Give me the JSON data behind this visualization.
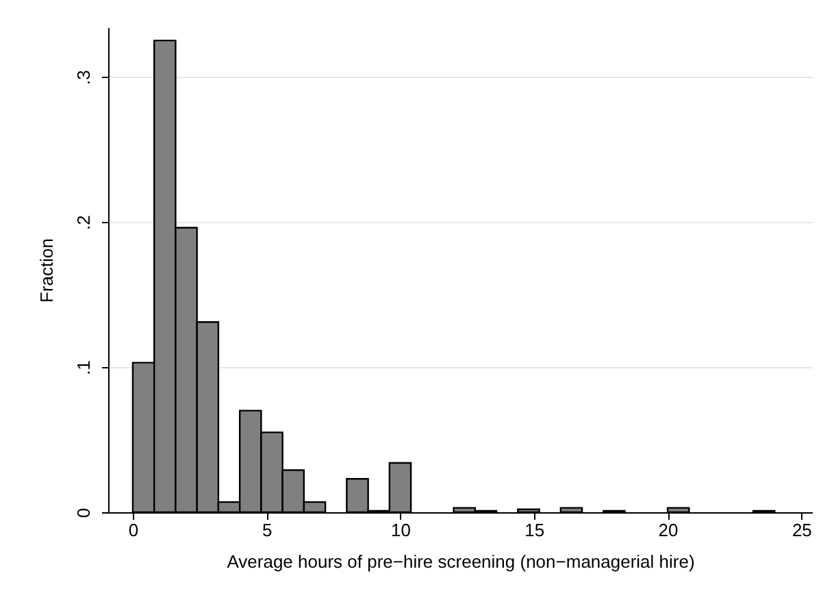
{
  "chart_data": {
    "type": "histogram",
    "xlabel": "Average hours of pre−hire screening (non−managerial hire)",
    "ylabel": "Fraction",
    "bins": [
      0,
      0.8,
      1.6,
      2.4,
      3.2,
      4,
      4.8,
      5.6,
      6.4,
      7.2,
      8,
      8.8,
      9.6,
      10.4,
      11.2,
      12,
      12.8,
      13.6,
      14.4,
      15.2,
      16,
      16.8,
      17.6,
      18.4,
      19.2,
      20,
      20.8,
      21.6,
      22.4,
      23.2,
      24
    ],
    "values": [
      0.103,
      0.325,
      0.196,
      0.131,
      0.007,
      0.07,
      0.055,
      0.029,
      0.007,
      null,
      0.023,
      0.001,
      0.034,
      null,
      null,
      0.003,
      0.001,
      null,
      0.002,
      null,
      0.003,
      null,
      0.001,
      null,
      null,
      0.003,
      null,
      null,
      null,
      0.001
    ],
    "color": "#808080",
    "xlim": [
      -0.92,
      25.4
    ],
    "xticks": [
      0,
      5,
      10,
      15,
      20,
      25
    ],
    "ylim": [
      0,
      0.334
    ],
    "yticks": [
      0,
      {
        "value": 0.1,
        "label": ".1"
      },
      {
        "value": 0.2,
        "label": ".2"
      },
      {
        "value": 0.3,
        "label": ".3"
      }
    ],
    "grid": "y"
  }
}
